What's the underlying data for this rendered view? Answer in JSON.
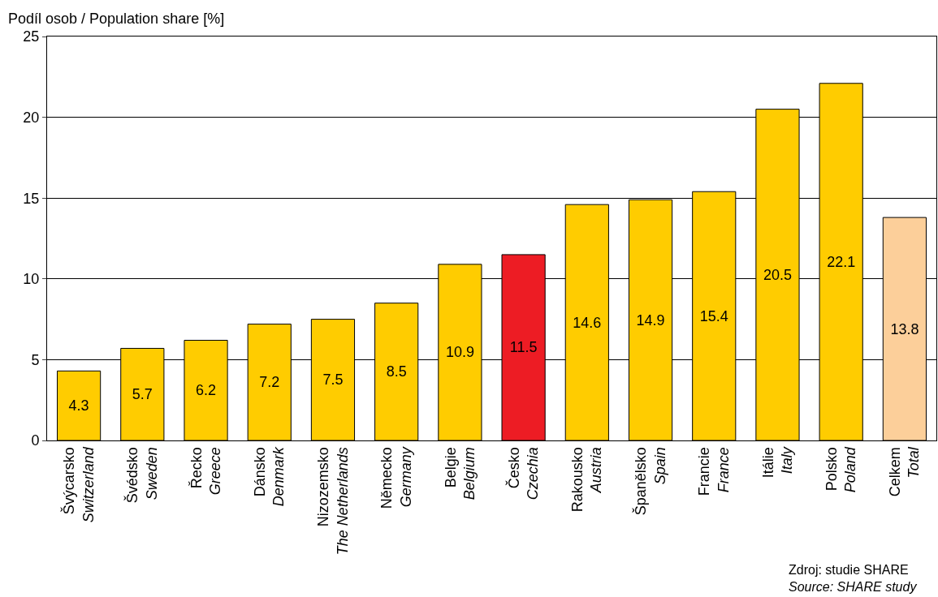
{
  "chart_data": {
    "type": "bar",
    "ylabel": "Podíl osob / Population share [%]",
    "categories": [
      "Švýcarsko\nSwitzerland",
      "Švédsko\nSweden",
      "Řecko\nGreece",
      "Dánsko\nDenmark",
      "Nizozemsko\nThe Netherlands",
      "Německo\nGermany",
      "Belgie\nBelgium",
      "Česko\nCzechia",
      "Rakousko\nAustria",
      "Španělsko\nSpain",
      "Francie\nFrance",
      "Itálie\nItaly",
      "Polsko\nPoland",
      "Celkem\nTotal"
    ],
    "values": [
      4.3,
      5.7,
      6.2,
      7.2,
      7.5,
      8.5,
      10.9,
      11.5,
      14.6,
      14.9,
      15.4,
      20.5,
      22.1,
      13.8
    ],
    "colors": [
      "#ffcc00",
      "#ffcc00",
      "#ffcc00",
      "#ffcc00",
      "#ffcc00",
      "#ffcc00",
      "#ffcc00",
      "#ed1c24",
      "#ffcc00",
      "#ffcc00",
      "#ffcc00",
      "#ffcc00",
      "#ffcc00",
      "#fccf9a"
    ],
    "data_labels": true,
    "ylim": [
      0,
      25
    ],
    "yticks": [
      0,
      5,
      10,
      15,
      20,
      25
    ],
    "grid": "y",
    "annotations": [
      "Zdroj: studie SHARE\nSource: SHARE study"
    ]
  }
}
